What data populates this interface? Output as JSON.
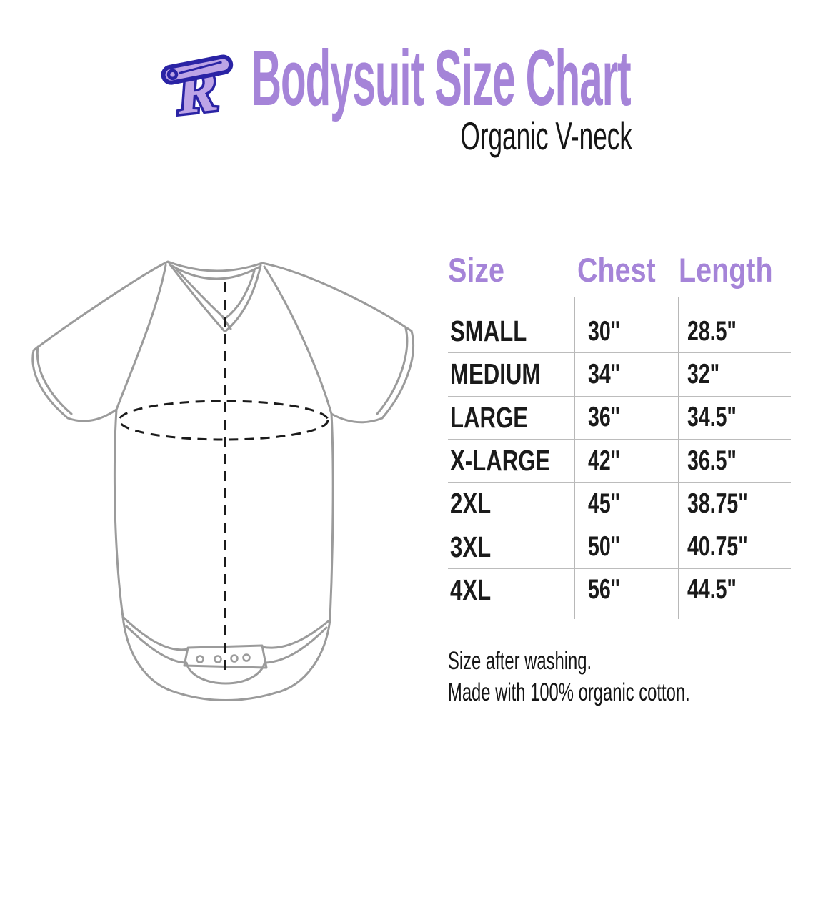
{
  "header": {
    "logo_alt": "safety-pin R logo",
    "title": "Bodysuit Size Chart",
    "subtitle": "Organic V-neck"
  },
  "diagram": {
    "label": "organic v-neck bodysuit outline drawing",
    "chest_measurement": "dashed ellipse across chest",
    "length_measurement": "dashed vertical center line",
    "snap_count": 4
  },
  "size_table": {
    "columns": [
      "Size",
      "Chest",
      "Length"
    ],
    "rows": [
      {
        "size": "SMALL",
        "chest": "30\"",
        "length": "28.5\""
      },
      {
        "size": "MEDIUM",
        "chest": "34\"",
        "length": "32\""
      },
      {
        "size": "LARGE",
        "chest": "36\"",
        "length": "34.5\""
      },
      {
        "size": "X-LARGE",
        "chest": "42\"",
        "length": "36.5\""
      },
      {
        "size": "2XL",
        "chest": "45\"",
        "length": "38.75\""
      },
      {
        "size": "3XL",
        "chest": "50\"",
        "length": "40.75\""
      },
      {
        "size": "4XL",
        "chest": "56\"",
        "length": "44.5\""
      }
    ]
  },
  "notes": {
    "line1": "Size after washing.",
    "line2": "Made with 100% organic cotton."
  },
  "colors": {
    "accent_purple": "#a584d8",
    "logo_fill": "#bda4e6",
    "logo_outline": "#2a23a5",
    "text_black": "#1a1a1a",
    "diagram_gray": "#9b9b9b",
    "grid_line": "#bcbcbc"
  },
  "chart_data": {
    "type": "table",
    "title": "Bodysuit Size Chart — Organic V-neck",
    "columns": [
      "Size",
      "Chest",
      "Length"
    ],
    "rows": [
      [
        "SMALL",
        "30\"",
        "28.5\""
      ],
      [
        "MEDIUM",
        "34\"",
        "32\""
      ],
      [
        "LARGE",
        "36\"",
        "34.5\""
      ],
      [
        "X-LARGE",
        "42\"",
        "36.5\""
      ],
      [
        "2XL",
        "45\"",
        "38.75\""
      ],
      [
        "3XL",
        "50\"",
        "40.75\""
      ],
      [
        "4XL",
        "56\"",
        "44.5\""
      ]
    ],
    "units": "inches",
    "footnotes": [
      "Size after washing.",
      "Made with 100% organic cotton."
    ]
  }
}
